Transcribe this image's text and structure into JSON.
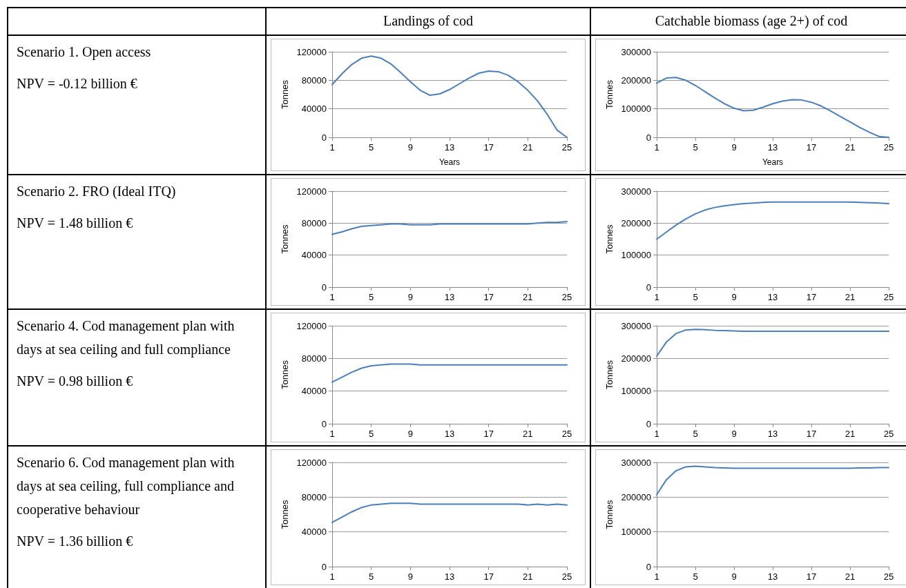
{
  "chart_data": [
    {
      "type": "other",
      "title": "Landings of cod"
    },
    {
      "type": "other",
      "title": "Catchable biomass (age 2+) of cod"
    },
    {
      "type": "other",
      "title": "Scenario 1. Open access",
      "annotations": [
        "NPV = -0.12 billion €"
      ]
    },
    {
      "type": "line",
      "xlabel": "Years",
      "ylabel": "Tonnes",
      "x": [
        1,
        2,
        3,
        4,
        5,
        6,
        7,
        8,
        9,
        10,
        11,
        12,
        13,
        14,
        15,
        16,
        17,
        18,
        19,
        20,
        21,
        22,
        23,
        24,
        25
      ],
      "series": [
        {
          "color": "#4a7ebb",
          "values": [
            74000,
            89000,
            102000,
            111000,
            114000,
            111000,
            103000,
            91000,
            78000,
            66000,
            59000,
            61000,
            67000,
            75000,
            83000,
            90000,
            93000,
            92000,
            87000,
            78000,
            66000,
            51000,
            32000,
            10000,
            0
          ]
        }
      ],
      "xlim": [
        1,
        25
      ],
      "xticks": [
        1,
        5,
        9,
        13,
        17,
        21,
        25
      ],
      "ylim": [
        0,
        120000
      ],
      "yticks": [
        0,
        40000,
        80000,
        120000
      ],
      "grid": "y",
      "marker": "none",
      "line_style": "solid"
    },
    {
      "type": "line",
      "xlabel": "Years",
      "ylabel": "Tonnes",
      "x": [
        1,
        2,
        3,
        4,
        5,
        6,
        7,
        8,
        9,
        10,
        11,
        12,
        13,
        14,
        15,
        16,
        17,
        18,
        19,
        20,
        21,
        22,
        23,
        24,
        25
      ],
      "series": [
        {
          "color": "#4a7ebb",
          "values": [
            190000,
            208000,
            210000,
            200000,
            182000,
            160000,
            138000,
            118000,
            102000,
            93000,
            95000,
            106000,
            118000,
            127000,
            132000,
            131000,
            123000,
            110000,
            92000,
            73000,
            54000,
            35000,
            18000,
            3000,
            0
          ]
        }
      ],
      "xlim": [
        1,
        25
      ],
      "xticks": [
        1,
        5,
        9,
        13,
        17,
        21,
        25
      ],
      "ylim": [
        0,
        300000
      ],
      "yticks": [
        0,
        100000,
        200000,
        300000
      ],
      "grid": "y",
      "marker": "none",
      "line_style": "solid"
    },
    {
      "type": "other",
      "title": "Scenario 2. FRO (Ideal ITQ)",
      "annotations": [
        "NPV = 1.48 billion €"
      ]
    },
    {
      "type": "line",
      "ylabel": "Tonnes",
      "x": [
        1,
        2,
        3,
        4,
        5,
        6,
        7,
        8,
        9,
        10,
        11,
        12,
        13,
        14,
        15,
        16,
        17,
        18,
        19,
        20,
        21,
        22,
        23,
        24,
        25
      ],
      "series": [
        {
          "color": "#4a7ebb",
          "values": [
            66000,
            69000,
            73000,
            76000,
            77000,
            78000,
            79000,
            79000,
            78000,
            78000,
            78000,
            79000,
            79000,
            79000,
            79000,
            79000,
            79000,
            79000,
            79000,
            79000,
            79000,
            80000,
            81000,
            81000,
            82000
          ]
        }
      ],
      "xlim": [
        1,
        25
      ],
      "xticks": [
        1,
        5,
        9,
        13,
        17,
        21,
        25
      ],
      "ylim": [
        0,
        120000
      ],
      "yticks": [
        0,
        40000,
        80000,
        120000
      ],
      "grid": "y",
      "marker": "none",
      "line_style": "solid"
    },
    {
      "type": "line",
      "ylabel": "Tonnes",
      "x": [
        1,
        2,
        3,
        4,
        5,
        6,
        7,
        8,
        9,
        10,
        11,
        12,
        13,
        14,
        15,
        16,
        17,
        18,
        19,
        20,
        21,
        22,
        23,
        24,
        25
      ],
      "series": [
        {
          "color": "#4a7ebb",
          "values": [
            150000,
            172000,
            194000,
            213000,
            229000,
            241000,
            249000,
            254000,
            258000,
            261000,
            263000,
            265000,
            266000,
            266000,
            266000,
            266000,
            266000,
            266000,
            266000,
            266000,
            266000,
            265000,
            264000,
            263000,
            261000
          ]
        }
      ],
      "xlim": [
        1,
        25
      ],
      "xticks": [
        1,
        5,
        9,
        13,
        17,
        21,
        25
      ],
      "ylim": [
        0,
        300000
      ],
      "yticks": [
        0,
        100000,
        200000,
        300000
      ],
      "grid": "y",
      "marker": "none",
      "line_style": "solid"
    },
    {
      "type": "other",
      "title": "Scenario 4. Cod management plan with days at sea ceiling and full compliance",
      "annotations": [
        "NPV = 0.98 billion €"
      ]
    },
    {
      "type": "line",
      "ylabel": "Tonnes",
      "x": [
        1,
        2,
        3,
        4,
        5,
        6,
        7,
        8,
        9,
        10,
        11,
        12,
        13,
        14,
        15,
        16,
        17,
        18,
        19,
        20,
        21,
        22,
        23,
        24,
        25
      ],
      "series": [
        {
          "color": "#4a7ebb",
          "values": [
            51000,
            57000,
            63000,
            68000,
            71000,
            72000,
            73000,
            73000,
            73000,
            72000,
            72000,
            72000,
            72000,
            72000,
            72000,
            72000,
            72000,
            72000,
            72000,
            72000,
            72000,
            72000,
            72000,
            72000,
            72000
          ]
        }
      ],
      "xlim": [
        1,
        25
      ],
      "xticks": [
        1,
        5,
        9,
        13,
        17,
        21,
        25
      ],
      "ylim": [
        0,
        120000
      ],
      "yticks": [
        0,
        40000,
        80000,
        120000
      ],
      "grid": "y",
      "marker": "none",
      "line_style": "solid"
    },
    {
      "type": "line",
      "ylabel": "Tonnes",
      "x": [
        1,
        2,
        3,
        4,
        5,
        6,
        7,
        8,
        9,
        10,
        11,
        12,
        13,
        14,
        15,
        16,
        17,
        18,
        19,
        20,
        21,
        22,
        23,
        24,
        25
      ],
      "series": [
        {
          "color": "#4a7ebb",
          "values": [
            207000,
            250000,
            276000,
            287000,
            289000,
            288000,
            286000,
            285000,
            284000,
            283000,
            283000,
            283000,
            283000,
            283000,
            283000,
            283000,
            283000,
            283000,
            283000,
            283000,
            283000,
            283000,
            283000,
            283000,
            283000
          ]
        }
      ],
      "xlim": [
        1,
        25
      ],
      "xticks": [
        1,
        5,
        9,
        13,
        17,
        21,
        25
      ],
      "ylim": [
        0,
        300000
      ],
      "yticks": [
        0,
        100000,
        200000,
        300000
      ],
      "grid": "y",
      "marker": "none",
      "line_style": "solid"
    },
    {
      "type": "other",
      "title": "Scenario 6. Cod management plan with days at sea ceiling, full compliance and cooperative behaviour",
      "annotations": [
        "NPV = 1.36 billion €"
      ]
    },
    {
      "type": "line",
      "ylabel": "Tonnes",
      "x": [
        1,
        2,
        3,
        4,
        5,
        6,
        7,
        8,
        9,
        10,
        11,
        12,
        13,
        14,
        15,
        16,
        17,
        18,
        19,
        20,
        21,
        22,
        23,
        24,
        25
      ],
      "series": [
        {
          "color": "#4a7ebb",
          "values": [
            51000,
            57000,
            63000,
            68000,
            71000,
            72000,
            73000,
            73000,
            73000,
            72000,
            72000,
            72000,
            72000,
            72000,
            72000,
            72000,
            72000,
            72000,
            72000,
            72000,
            71000,
            72000,
            71000,
            72000,
            71000
          ]
        }
      ],
      "xlim": [
        1,
        25
      ],
      "xticks": [
        1,
        5,
        9,
        13,
        17,
        21,
        25
      ],
      "ylim": [
        0,
        120000
      ],
      "yticks": [
        0,
        40000,
        80000,
        120000
      ],
      "grid": "y",
      "marker": "none",
      "line_style": "solid"
    },
    {
      "type": "line",
      "ylabel": "Tonnes",
      "x": [
        1,
        2,
        3,
        4,
        5,
        6,
        7,
        8,
        9,
        10,
        11,
        12,
        13,
        14,
        15,
        16,
        17,
        18,
        19,
        20,
        21,
        22,
        23,
        24,
        25
      ],
      "series": [
        {
          "color": "#4a7ebb",
          "values": [
            207000,
            250000,
            276000,
            287000,
            289000,
            287000,
            285000,
            284000,
            283000,
            283000,
            283000,
            283000,
            283000,
            283000,
            283000,
            283000,
            283000,
            283000,
            283000,
            283000,
            283000,
            284000,
            284000,
            285000,
            285000
          ]
        }
      ],
      "xlim": [
        1,
        25
      ],
      "xticks": [
        1,
        5,
        9,
        13,
        17,
        21,
        25
      ],
      "ylim": [
        0,
        300000
      ],
      "yticks": [
        0,
        100000,
        200000,
        300000
      ],
      "grid": "y",
      "marker": "none",
      "line_style": "solid"
    }
  ]
}
